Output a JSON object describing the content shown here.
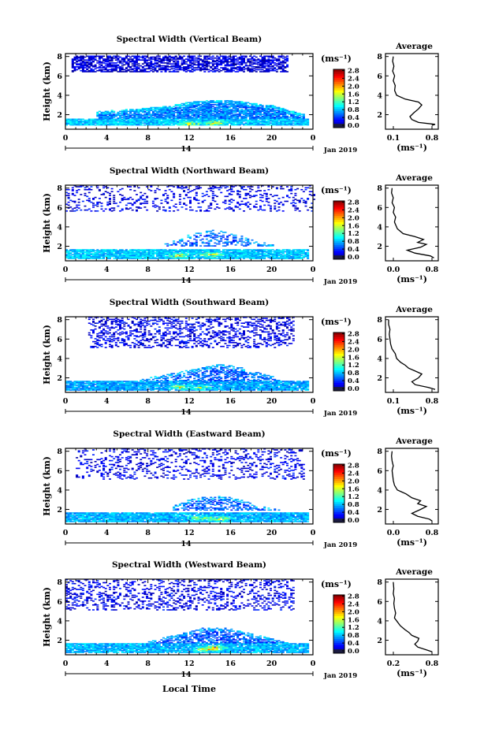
{
  "figure": {
    "xlabel": "Local Time",
    "date_label": "14",
    "month_label": "Jan 2019"
  },
  "chart_data": [
    {
      "type": "heatmap",
      "title": "Spectral Width (Vertical Beam)",
      "ylabel": "Height (km)",
      "x_ticks": [
        "0",
        "4",
        "8",
        "12",
        "16",
        "20",
        "0"
      ],
      "y_ticks": [
        "2",
        "4",
        "6",
        "8"
      ],
      "xlim": [
        0,
        24
      ],
      "ylim": [
        0.5,
        8.3
      ],
      "colorbar": {
        "unit": "(ms⁻¹)",
        "ticks": [
          "0.0",
          "0.4",
          "0.8",
          "1.2",
          "1.6",
          "2.0",
          "2.4",
          "2.8"
        ],
        "range": [
          0,
          2.8
        ]
      },
      "layers": [
        {
          "name": "sparse_upper",
          "h": [
            6.3,
            8.0
          ],
          "t": [
            0.5,
            21.5
          ],
          "density": 0.62,
          "value": 0.25
        },
        {
          "name": "cloud_layer",
          "top_points": [
            [
              3,
              2.3
            ],
            [
              7,
              2.6
            ],
            [
              10,
              2.9
            ],
            [
              12,
              3.3
            ],
            [
              15,
              3.5
            ],
            [
              17,
              3.3
            ],
            [
              20,
              2.9
            ],
            [
              23,
              2.0
            ]
          ],
          "base": 1.6,
          "density": 0.85,
          "value": 0.7
        },
        {
          "name": "boundary_layer",
          "h": [
            0.8,
            1.6
          ],
          "t": [
            0,
            23.5
          ],
          "density": 0.95,
          "value": 0.9,
          "hotspot": [
            [
              12,
              1.0
            ],
            [
              14.5,
              1.1
            ]
          ]
        }
      ],
      "average": {
        "title": "Average",
        "x_ticks": [
          "0.1",
          "0.8"
        ],
        "x_range": [
          0.1,
          0.8
        ],
        "y_ticks": [
          "2",
          "4",
          "6",
          "8"
        ],
        "xlabel": "(ms⁻¹)",
        "profile": [
          [
            0.75,
            0.9
          ],
          [
            0.8,
            1.0
          ],
          [
            0.55,
            1.2
          ],
          [
            0.45,
            1.5
          ],
          [
            0.42,
            1.8
          ],
          [
            0.48,
            2.2
          ],
          [
            0.55,
            2.6
          ],
          [
            0.6,
            3.0
          ],
          [
            0.55,
            3.3
          ],
          [
            0.35,
            3.6
          ],
          [
            0.22,
            4.0
          ],
          [
            0.19,
            4.5
          ],
          [
            0.2,
            5.0
          ],
          [
            0.17,
            5.5
          ],
          [
            0.19,
            6.0
          ],
          [
            0.16,
            6.5
          ],
          [
            0.18,
            7.0
          ],
          [
            0.16,
            7.5
          ],
          [
            0.17,
            8.0
          ]
        ]
      }
    },
    {
      "type": "heatmap",
      "title": "Spectral Width (Northward Beam)",
      "ylabel": "Height (km)",
      "x_ticks": [
        "0",
        "4",
        "8",
        "12",
        "16",
        "20",
        "0"
      ],
      "y_ticks": [
        "2",
        "4",
        "6",
        "8"
      ],
      "xlim": [
        0,
        24
      ],
      "ylim": [
        0.5,
        8.3
      ],
      "colorbar": {
        "unit": "(ms⁻¹)",
        "ticks": [
          "0.0",
          "0.4",
          "0.8",
          "1.2",
          "1.6",
          "2.0",
          "2.4",
          "2.8"
        ],
        "range": [
          0,
          2.8
        ]
      },
      "layers": [
        {
          "name": "sparse_upper",
          "h": [
            5.5,
            8.2
          ],
          "t": [
            0,
            24
          ],
          "density": 0.18,
          "value": 0.3
        },
        {
          "name": "cloud_layer",
          "top_points": [
            [
              9,
              2.0
            ],
            [
              12,
              3.2
            ],
            [
              14,
              3.7
            ],
            [
              16,
              3.4
            ],
            [
              18,
              2.6
            ],
            [
              22,
              1.6
            ]
          ],
          "base": 2.0,
          "density": 0.35,
          "value": 0.6
        },
        {
          "name": "boundary_layer",
          "h": [
            0.7,
            1.7
          ],
          "t": [
            0,
            23.5
          ],
          "density": 0.9,
          "value": 0.9,
          "hotspot": [
            [
              11,
              1.0
            ],
            [
              14,
              1.1
            ]
          ]
        }
      ],
      "average": {
        "title": "Average",
        "x_ticks": [
          "0.0",
          "0.8"
        ],
        "x_range": [
          0.0,
          0.8
        ],
        "y_ticks": [
          "2",
          "4",
          "6",
          "8"
        ],
        "xlabel": "(ms⁻¹)",
        "profile": [
          [
            0.78,
            0.8
          ],
          [
            0.72,
            1.0
          ],
          [
            0.45,
            1.3
          ],
          [
            0.32,
            1.6
          ],
          [
            0.55,
            1.9
          ],
          [
            0.65,
            2.2
          ],
          [
            0.5,
            2.4
          ],
          [
            0.6,
            2.7
          ],
          [
            0.45,
            3.0
          ],
          [
            0.25,
            3.3
          ],
          [
            0.15,
            3.8
          ],
          [
            0.1,
            4.5
          ],
          [
            0.12,
            5.0
          ],
          [
            0.08,
            5.5
          ],
          [
            0.1,
            6.0
          ],
          [
            0.06,
            6.5
          ],
          [
            0.08,
            7.0
          ],
          [
            0.05,
            7.5
          ],
          [
            0.06,
            8.0
          ]
        ]
      }
    },
    {
      "type": "heatmap",
      "title": "Spectral Width (Southward Beam)",
      "ylabel": "Height (km)",
      "x_ticks": [
        "0",
        "4",
        "8",
        "12",
        "16",
        "20",
        "0"
      ],
      "y_ticks": [
        "2",
        "4",
        "6",
        "8"
      ],
      "xlim": [
        0,
        24
      ],
      "ylim": [
        0.5,
        8.3
      ],
      "colorbar": {
        "unit": "(ms⁻¹)",
        "ticks": [
          "0.0",
          "0.4",
          "0.8",
          "1.2",
          "1.6",
          "2.0",
          "2.4",
          "2.8"
        ],
        "range": [
          0,
          2.8
        ]
      },
      "layers": [
        {
          "name": "sparse_upper",
          "h": [
            5.0,
            8.2
          ],
          "t": [
            2,
            22
          ],
          "density": 0.28,
          "value": 0.3
        },
        {
          "name": "cloud_layer",
          "top_points": [
            [
              7,
              1.8
            ],
            [
              10,
              2.4
            ],
            [
              13,
              3.0
            ],
            [
              15,
              3.4
            ],
            [
              17,
              3.0
            ],
            [
              20,
              2.1
            ],
            [
              23,
              1.2
            ]
          ],
          "base": 1.7,
          "density": 0.55,
          "value": 0.6
        },
        {
          "name": "boundary_layer",
          "h": [
            0.7,
            1.7
          ],
          "t": [
            0,
            23.5
          ],
          "density": 0.9,
          "value": 0.8,
          "hotspot": [
            [
              11,
              1.0
            ],
            [
              13,
              1.0
            ]
          ]
        }
      ],
      "average": {
        "title": "Average",
        "x_ticks": [
          "0.1",
          "0.8"
        ],
        "x_range": [
          0.1,
          0.8
        ],
        "y_ticks": [
          "2",
          "4",
          "6",
          "8"
        ],
        "xlabel": "(ms⁻¹)",
        "profile": [
          [
            0.8,
            0.8
          ],
          [
            0.7,
            1.0
          ],
          [
            0.5,
            1.3
          ],
          [
            0.45,
            1.6
          ],
          [
            0.55,
            2.0
          ],
          [
            0.6,
            2.4
          ],
          [
            0.5,
            2.7
          ],
          [
            0.4,
            3.0
          ],
          [
            0.35,
            3.3
          ],
          [
            0.28,
            3.6
          ],
          [
            0.22,
            4.0
          ],
          [
            0.2,
            4.5
          ],
          [
            0.15,
            5.0
          ],
          [
            0.13,
            5.5
          ],
          [
            0.12,
            6.0
          ],
          [
            0.11,
            6.5
          ],
          [
            0.12,
            7.0
          ],
          [
            0.1,
            7.5
          ],
          [
            0.1,
            8.0
          ]
        ]
      }
    },
    {
      "type": "heatmap",
      "title": "Spectral Width (Eastward Beam)",
      "ylabel": "Height (km)",
      "x_ticks": [
        "0",
        "4",
        "8",
        "12",
        "16",
        "20",
        "0"
      ],
      "y_ticks": [
        "2",
        "4",
        "6",
        "8"
      ],
      "xlim": [
        0,
        24
      ],
      "ylim": [
        0.5,
        8.3
      ],
      "colorbar": {
        "unit": "(ms⁻¹)",
        "ticks": [
          "0.0",
          "0.4",
          "0.8",
          "1.2",
          "1.6",
          "2.0",
          "2.4",
          "2.8"
        ],
        "range": [
          0,
          2.8
        ]
      },
      "layers": [
        {
          "name": "sparse_upper",
          "h": [
            5.0,
            8.2
          ],
          "t": [
            1,
            23
          ],
          "density": 0.2,
          "value": 0.3
        },
        {
          "name": "cloud_layer",
          "top_points": [
            [
              10,
              2.2
            ],
            [
              12,
              3.0
            ],
            [
              14,
              3.4
            ],
            [
              16,
              3.2
            ],
            [
              18,
              2.6
            ],
            [
              21,
              1.8
            ],
            [
              23,
              1.3
            ]
          ],
          "base": 1.9,
          "density": 0.45,
          "value": 0.6
        },
        {
          "name": "boundary_layer",
          "h": [
            0.7,
            1.7
          ],
          "t": [
            0,
            23.5
          ],
          "density": 0.92,
          "value": 0.85,
          "hotspot": [
            [
              13,
              1.1
            ],
            [
              15,
              1.0
            ]
          ]
        }
      ],
      "average": {
        "title": "Average",
        "x_ticks": [
          "0.0",
          "0.8"
        ],
        "x_range": [
          0.0,
          0.8
        ],
        "y_ticks": [
          "2",
          "4",
          "6",
          "8"
        ],
        "xlabel": "(ms⁻¹)",
        "profile": [
          [
            0.75,
            0.8
          ],
          [
            0.7,
            1.0
          ],
          [
            0.5,
            1.3
          ],
          [
            0.4,
            1.6
          ],
          [
            0.55,
            2.0
          ],
          [
            0.65,
            2.3
          ],
          [
            0.5,
            2.6
          ],
          [
            0.55,
            2.9
          ],
          [
            0.4,
            3.2
          ],
          [
            0.3,
            3.6
          ],
          [
            0.15,
            4.0
          ],
          [
            0.1,
            4.5
          ],
          [
            0.08,
            5.0
          ],
          [
            0.07,
            5.5
          ],
          [
            0.06,
            6.0
          ],
          [
            0.08,
            6.5
          ],
          [
            0.06,
            7.0
          ],
          [
            0.05,
            7.5
          ],
          [
            0.06,
            8.0
          ]
        ]
      }
    },
    {
      "type": "heatmap",
      "title": "Spectral Width (Westward Beam)",
      "ylabel": "Height (km)",
      "x_ticks": [
        "0",
        "4",
        "8",
        "12",
        "16",
        "20",
        "0"
      ],
      "y_ticks": [
        "2",
        "4",
        "6",
        "8"
      ],
      "xlim": [
        0,
        24
      ],
      "ylim": [
        0.5,
        8.3
      ],
      "colorbar": {
        "unit": "(ms⁻¹)",
        "ticks": [
          "0.0",
          "0.4",
          "0.8",
          "1.2",
          "1.6",
          "2.0",
          "2.4",
          "2.8"
        ],
        "range": [
          0,
          2.8
        ]
      },
      "layers": [
        {
          "name": "sparse_upper",
          "h": [
            5.0,
            8.2
          ],
          "t": [
            0,
            22
          ],
          "density": 0.25,
          "value": 0.3
        },
        {
          "name": "cloud_layer",
          "top_points": [
            [
              8,
              1.9
            ],
            [
              11,
              2.6
            ],
            [
              13,
              3.2
            ],
            [
              15,
              3.3
            ],
            [
              17,
              2.9
            ],
            [
              20,
              2.1
            ],
            [
              23,
              1.3
            ]
          ],
          "base": 1.7,
          "density": 0.6,
          "value": 0.6
        },
        {
          "name": "boundary_layer",
          "h": [
            0.7,
            1.7
          ],
          "t": [
            0,
            23.5
          ],
          "density": 0.92,
          "value": 0.85,
          "hotspot": [
            [
              13.5,
              1.0
            ],
            [
              14.5,
              1.2
            ]
          ]
        }
      ],
      "average": {
        "title": "Average",
        "x_ticks": [
          "0.2",
          "0.8"
        ],
        "x_range": [
          0.1,
          0.9
        ],
        "y_ticks": [
          "2",
          "4",
          "6",
          "8"
        ],
        "xlabel": "(ms⁻¹)",
        "profile": [
          [
            0.85,
            0.8
          ],
          [
            0.75,
            1.0
          ],
          [
            0.6,
            1.3
          ],
          [
            0.55,
            1.6
          ],
          [
            0.6,
            1.9
          ],
          [
            0.62,
            2.2
          ],
          [
            0.5,
            2.5
          ],
          [
            0.45,
            2.8
          ],
          [
            0.38,
            3.1
          ],
          [
            0.3,
            3.5
          ],
          [
            0.25,
            3.9
          ],
          [
            0.2,
            4.3
          ],
          [
            0.22,
            4.8
          ],
          [
            0.2,
            5.3
          ],
          [
            0.19,
            5.8
          ],
          [
            0.2,
            6.3
          ],
          [
            0.18,
            6.8
          ],
          [
            0.19,
            7.3
          ],
          [
            0.18,
            8.0
          ]
        ]
      }
    }
  ]
}
